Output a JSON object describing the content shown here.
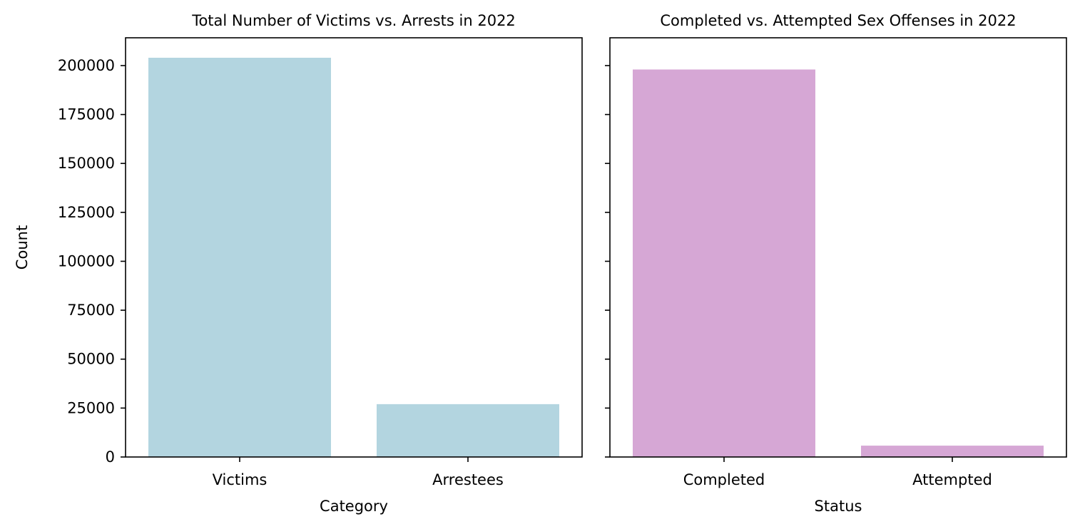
{
  "chart_data": [
    {
      "type": "bar",
      "title": "Total Number of Victims vs. Arrests in 2022",
      "xlabel": "Category",
      "ylabel": "Count",
      "categories": [
        "Victims",
        "Arrestees"
      ],
      "values": [
        204000,
        27000
      ],
      "ylim": [
        0,
        214200
      ],
      "yticks": [
        "0",
        "25000",
        "50000",
        "75000",
        "100000",
        "125000",
        "150000",
        "175000",
        "200000"
      ],
      "color": "#b3d5e0",
      "grid": false
    },
    {
      "type": "bar",
      "title": "Completed vs. Attempted Sex Offenses in 2022",
      "xlabel": "Status",
      "ylabel": "",
      "categories": [
        "Completed",
        "Attempted"
      ],
      "values": [
        198000,
        5800
      ],
      "ylim": [
        0,
        214200
      ],
      "sharey": true,
      "color": "#d6a7d5",
      "grid": false
    }
  ]
}
